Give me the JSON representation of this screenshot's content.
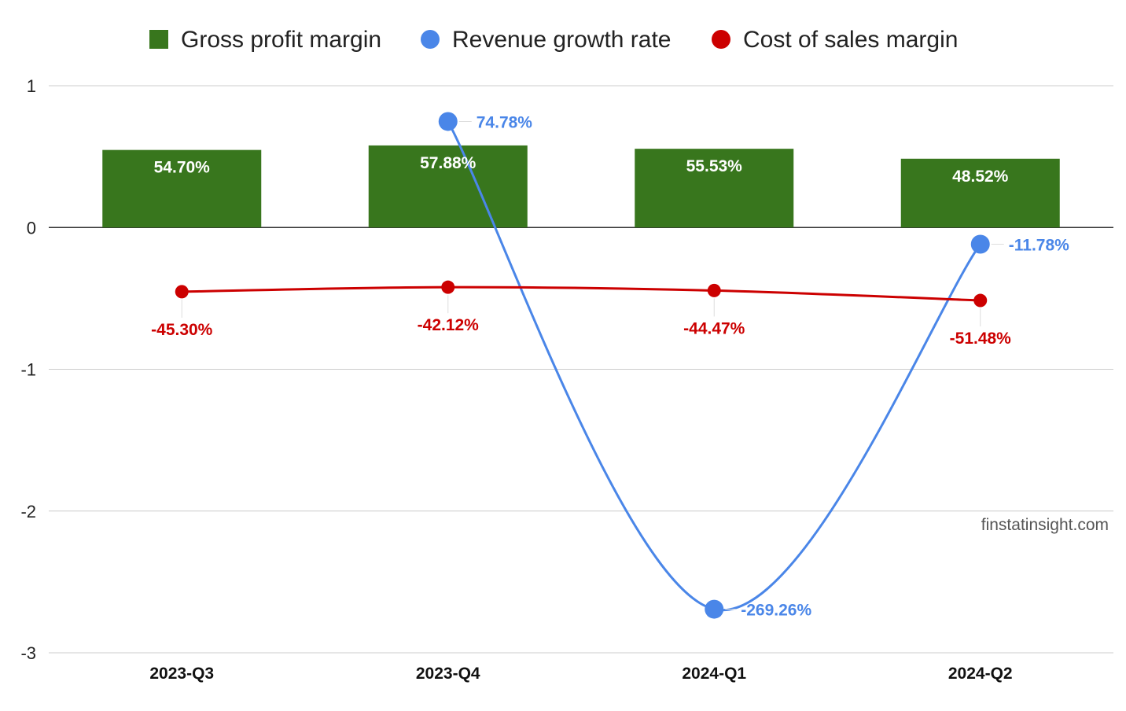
{
  "chart_data": {
    "type": "bar",
    "categories": [
      "2023-Q3",
      "2023-Q4",
      "2024-Q1",
      "2024-Q2"
    ],
    "series": [
      {
        "name": "Gross profit margin",
        "kind": "bar",
        "color": "#38761d",
        "values": [
          0.547,
          0.5788,
          0.5553,
          0.4852
        ],
        "labels": [
          "54.70%",
          "57.88%",
          "55.53%",
          "48.52%"
        ]
      },
      {
        "name": "Revenue growth rate",
        "kind": "line",
        "color": "#4a86e8",
        "values": [
          null,
          0.7478,
          -2.6926,
          -0.1178
        ],
        "labels": [
          null,
          "74.78%",
          "-269.26%",
          "-11.78%"
        ]
      },
      {
        "name": "Cost of sales margin",
        "kind": "line",
        "color": "#cc0000",
        "values": [
          -0.453,
          -0.4212,
          -0.4447,
          -0.5148
        ],
        "labels": [
          "-45.30%",
          "-42.12%",
          "-44.47%",
          "-51.48%"
        ]
      }
    ],
    "ylim": [
      -3,
      1
    ],
    "yticks": [
      1,
      0,
      -1,
      -2,
      -3
    ],
    "grid": true,
    "legend": "top",
    "annotation": "finstatinsight.com"
  }
}
